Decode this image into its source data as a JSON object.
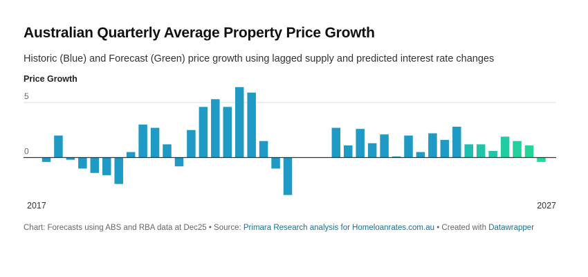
{
  "title": "Australian Quarterly Average Property Price Growth",
  "subtitle": "Historic (Blue) and Forecast (Green) price growth using lagged supply and predicted interest rate changes",
  "footer": {
    "chart_prefix": "Chart: Forecasts using ABS and RBA data at Dec25 • Source: ",
    "source_link": "Primara Research analysis for Homeloanrates.com.au",
    "created_prefix": " • Created with ",
    "created_link": "Datawrapper"
  },
  "colors": {
    "historic": "#1f9ac4",
    "forecast": "#22cf9b",
    "grid": "#dddddd",
    "zero": "#333333"
  },
  "chart_data": {
    "type": "bar",
    "ylabel": "Price Growth",
    "ylim": [
      -3.5,
      6.5
    ],
    "yticks": [
      0,
      5
    ],
    "grid": true,
    "xtick_labels": [
      "2017",
      "2027"
    ],
    "series": [
      {
        "values": [
          -0.4,
          2.0,
          -0.2,
          -1.0,
          -1.4,
          -1.6,
          -2.4,
          0.5,
          3.0,
          2.7,
          1.2,
          -0.8,
          2.5,
          4.6,
          5.3,
          4.6,
          6.4,
          5.9,
          1.5,
          -1.0,
          -3.4,
          null,
          null,
          null,
          2.7,
          1.1,
          2.6,
          1.3,
          2.1,
          0.1,
          2.0,
          0.5,
          2.2,
          1.6,
          2.8
        ]
      },
      {
        "values": [
          1.2,
          1.2,
          0.6,
          1.9,
          1.5,
          1.1,
          -0.4
        ]
      }
    ]
  }
}
